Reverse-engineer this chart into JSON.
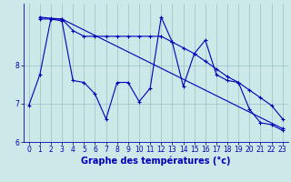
{
  "xlabel": "Graphe des températures (°c)",
  "bg_color": "#cce8e8",
  "line_color": "#0000bb",
  "xlim": [
    -0.5,
    23.5
  ],
  "ylim": [
    6.0,
    9.6
  ],
  "yticks": [
    6,
    7,
    8
  ],
  "xticks": [
    0,
    1,
    2,
    3,
    4,
    5,
    6,
    7,
    8,
    9,
    10,
    11,
    12,
    13,
    14,
    15,
    16,
    17,
    18,
    19,
    20,
    21,
    22,
    23
  ],
  "series1_x": [
    0,
    1,
    2,
    3,
    4,
    5,
    6,
    7,
    8,
    9,
    10,
    11,
    12,
    13,
    14,
    15,
    16,
    17,
    18,
    19,
    20,
    21,
    22,
    23
  ],
  "series1_y": [
    6.95,
    7.75,
    9.2,
    9.15,
    7.6,
    7.55,
    7.25,
    6.6,
    7.55,
    7.55,
    7.05,
    7.4,
    9.25,
    8.6,
    7.45,
    8.3,
    8.65,
    7.75,
    7.6,
    7.55,
    6.85,
    6.5,
    6.45,
    6.3
  ],
  "series2_x": [
    1,
    2,
    3,
    4,
    5,
    6,
    7,
    8,
    9,
    10,
    11,
    12,
    13,
    14,
    15,
    16,
    17,
    18,
    19,
    20,
    21,
    22,
    23
  ],
  "series2_y": [
    9.2,
    9.2,
    9.2,
    8.9,
    8.75,
    8.75,
    8.75,
    8.75,
    8.75,
    8.75,
    8.75,
    8.75,
    8.6,
    8.45,
    8.3,
    8.1,
    7.9,
    7.7,
    7.55,
    7.35,
    7.15,
    6.95,
    6.6
  ],
  "series3_x": [
    1,
    2,
    3,
    23
  ],
  "series3_y": [
    9.25,
    9.22,
    9.2,
    6.35
  ],
  "xlabel_fontsize": 7,
  "tick_fontsize": 5.5
}
